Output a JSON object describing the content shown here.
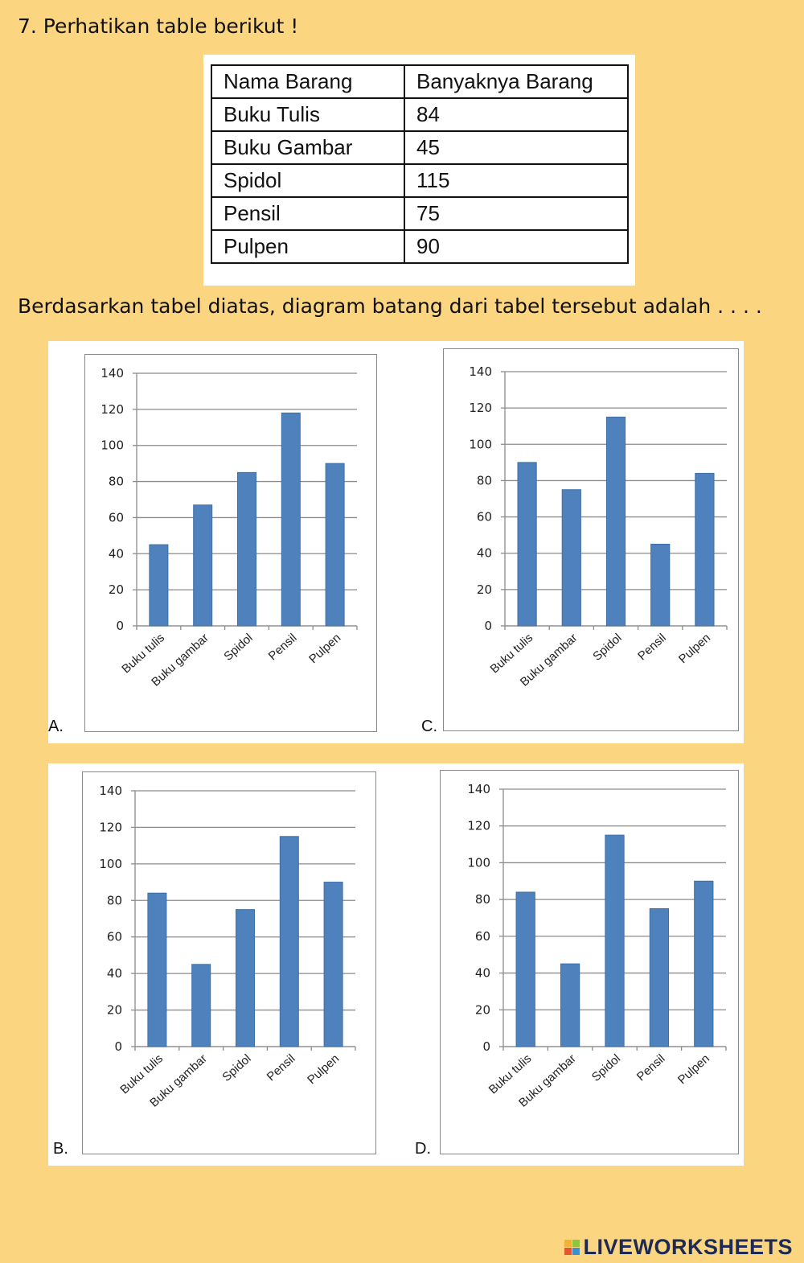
{
  "question": {
    "title": "7. Perhatikan table berikut !",
    "instruction": "Berdasarkan tabel diatas, diagram batang dari tabel tersebut adalah . . . ."
  },
  "table": {
    "headers": [
      "Nama Barang",
      "Banyaknya Barang"
    ],
    "rows": [
      [
        "Buku Tulis",
        "84"
      ],
      [
        "Buku Gambar",
        "45"
      ],
      [
        "Spidol",
        "115"
      ],
      [
        "Pensil",
        "75"
      ],
      [
        "Pulpen",
        "90"
      ]
    ]
  },
  "options": [
    {
      "letter": "A.",
      "chart": "A"
    },
    {
      "letter": "C.",
      "chart": "C"
    },
    {
      "letter": "B.",
      "chart": "B"
    },
    {
      "letter": "D.",
      "chart": "D"
    }
  ],
  "chart_data": [
    {
      "id": "A",
      "type": "bar",
      "categories": [
        "Buku tulis",
        "Buku gambar",
        "Spidol",
        "Pensil",
        "Pulpen"
      ],
      "values": [
        45,
        67,
        85,
        118,
        90
      ],
      "ylim": [
        0,
        140
      ],
      "yticks": [
        0,
        20,
        40,
        60,
        80,
        100,
        120,
        140
      ],
      "grid": true,
      "bar_color": "#4f81bd"
    },
    {
      "id": "C",
      "type": "bar",
      "categories": [
        "Buku tulis",
        "Buku gambar",
        "Spidol",
        "Pensil",
        "Pulpen"
      ],
      "values": [
        90,
        75,
        115,
        45,
        84
      ],
      "ylim": [
        0,
        140
      ],
      "yticks": [
        0,
        20,
        40,
        60,
        80,
        100,
        120,
        140
      ],
      "grid": true,
      "bar_color": "#4f81bd"
    },
    {
      "id": "B",
      "type": "bar",
      "categories": [
        "Buku tulis",
        "Buku gambar",
        "Spidol",
        "Pensil",
        "Pulpen"
      ],
      "values": [
        84,
        45,
        75,
        115,
        90
      ],
      "ylim": [
        0,
        140
      ],
      "yticks": [
        0,
        20,
        40,
        60,
        80,
        100,
        120,
        140
      ],
      "grid": true,
      "bar_color": "#4f81bd"
    },
    {
      "id": "D",
      "type": "bar",
      "categories": [
        "Buku tulis",
        "Buku gambar",
        "Spidol",
        "Pensil",
        "Pulpen"
      ],
      "values": [
        84,
        45,
        115,
        75,
        90
      ],
      "ylim": [
        0,
        140
      ],
      "yticks": [
        0,
        20,
        40,
        60,
        80,
        100,
        120,
        140
      ],
      "grid": true,
      "bar_color": "#4f81bd"
    }
  ],
  "footer": {
    "brand": "LIVEWORKSHEETS"
  },
  "colors": {
    "background": "#fbd57f",
    "pattern": "#f6c65a",
    "bar": "#4f81bd",
    "gridline": "#8c8c8c",
    "brand": "#1c2a55"
  }
}
